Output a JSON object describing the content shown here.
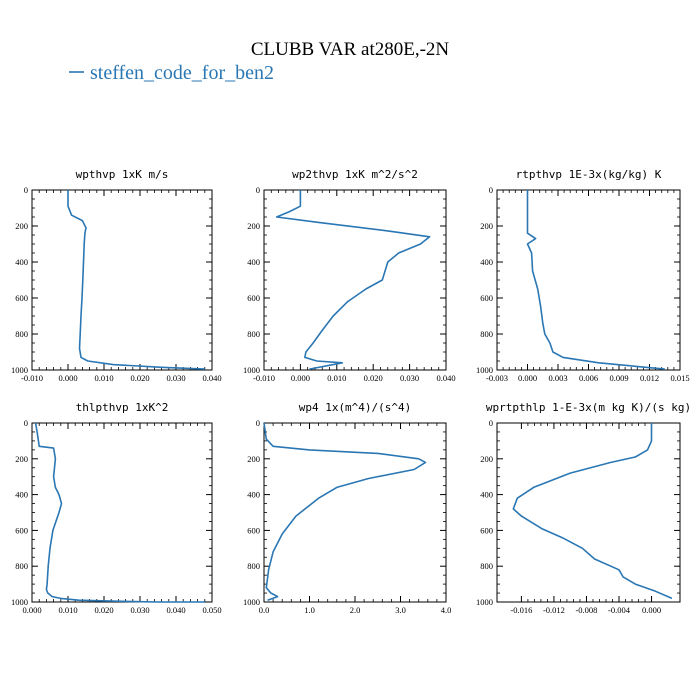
{
  "figure": {
    "title": "CLUBB VAR at280E,-2N",
    "legend": [
      {
        "name": "steffen_code_for_ben2",
        "color": "#2a77b4"
      }
    ]
  },
  "chart_data": [
    {
      "type": "line",
      "title": "wpthvp  1xK m/s",
      "xlim": [
        -0.01,
        0.04
      ],
      "ylim": [
        1000,
        0
      ],
      "xticks": [
        -0.01,
        0.0,
        0.01,
        0.02,
        0.03,
        0.04
      ],
      "xtick_labels": [
        "-0.010",
        "0.000",
        "0.010",
        "0.020",
        "0.030",
        "0.040"
      ],
      "yticks": [
        0,
        200,
        400,
        600,
        800,
        1000
      ],
      "ytick_labels": [
        "0",
        "200",
        "400",
        "600",
        "800",
        "1000"
      ],
      "series": [
        {
          "name": "steffen_code_for_ben2",
          "x": [
            0.0,
            0.0,
            0.0,
            0.001,
            0.004,
            0.005,
            0.0047,
            0.0045,
            0.0043,
            0.0041,
            0.0039,
            0.0036,
            0.0034,
            0.0032,
            0.0036,
            0.0055,
            0.0125,
            0.026,
            0.038
          ],
          "y": [
            0,
            40,
            90,
            140,
            170,
            210,
            240,
            300,
            400,
            500,
            600,
            700,
            800,
            880,
            930,
            950,
            970,
            985,
            995
          ]
        }
      ]
    },
    {
      "type": "line",
      "title": "wp2thvp  1xK m^2/s^2",
      "xlim": [
        -0.01,
        0.04
      ],
      "ylim": [
        1000,
        0
      ],
      "xticks": [
        -0.01,
        0.0,
        0.01,
        0.02,
        0.03,
        0.04
      ],
      "xtick_labels": [
        "-0.010",
        "0.000",
        "0.010",
        "0.020",
        "0.030",
        "0.040"
      ],
      "yticks": [
        0,
        200,
        400,
        600,
        800,
        1000
      ],
      "ytick_labels": [
        "0",
        "200",
        "400",
        "600",
        "800",
        "1000"
      ],
      "series": [
        {
          "name": "steffen_code_for_ben2",
          "x": [
            0.0,
            0.0,
            -0.003,
            -0.0065,
            0.005,
            0.025,
            0.0355,
            0.033,
            0.027,
            0.024,
            0.0225,
            0.018,
            0.013,
            0.009,
            0.006,
            0.0035,
            0.0015,
            0.0012,
            0.0045,
            0.0115,
            0.0025
          ],
          "y": [
            0,
            90,
            120,
            150,
            180,
            230,
            260,
            300,
            350,
            400,
            500,
            550,
            620,
            700,
            780,
            850,
            900,
            930,
            950,
            960,
            995
          ]
        }
      ]
    },
    {
      "type": "line",
      "title": "rtpthvp  1E-3x(kg/kg) K",
      "xlim": [
        -0.003,
        0.015
      ],
      "ylim": [
        1000,
        0
      ],
      "xticks": [
        -0.003,
        0.0,
        0.003,
        0.006,
        0.009,
        0.012,
        0.015
      ],
      "xtick_labels": [
        "-0.003",
        "0.000",
        "0.003",
        "0.006",
        "0.009",
        "0.012",
        "0.015"
      ],
      "yticks": [
        0,
        200,
        400,
        600,
        800,
        1000
      ],
      "ytick_labels": [
        "0",
        "200",
        "400",
        "600",
        "800",
        "1000"
      ],
      "series": [
        {
          "name": "steffen_code_for_ben2",
          "x": [
            0.0,
            0.0,
            0.0,
            0.0,
            0.0008,
            0.0,
            0.0004,
            0.0005,
            0.001,
            0.0013,
            0.0015,
            0.0017,
            0.0022,
            0.0025,
            0.0035,
            0.007,
            0.0135
          ],
          "y": [
            0,
            100,
            200,
            240,
            270,
            300,
            350,
            450,
            550,
            650,
            740,
            800,
            850,
            900,
            930,
            960,
            995
          ]
        }
      ]
    },
    {
      "type": "line",
      "title": "thlpthvp  1xK^2",
      "xlim": [
        0.0,
        0.05
      ],
      "ylim": [
        1000,
        0
      ],
      "xticks": [
        0.0,
        0.01,
        0.02,
        0.03,
        0.04,
        0.05
      ],
      "xtick_labels": [
        "0.000",
        "0.010",
        "0.020",
        "0.030",
        "0.040",
        "0.050"
      ],
      "yticks": [
        0,
        200,
        400,
        600,
        800,
        1000
      ],
      "ytick_labels": [
        "0",
        "200",
        "400",
        "600",
        "800",
        "1000"
      ],
      "series": [
        {
          "name": "steffen_code_for_ben2",
          "x": [
            0.001,
            0.0015,
            0.002,
            0.006,
            0.0065,
            0.006,
            0.0065,
            0.0075,
            0.0082,
            0.0075,
            0.0058,
            0.005,
            0.0045,
            0.0042,
            0.004,
            0.0044,
            0.0056,
            0.008,
            0.013,
            0.022,
            0.035,
            0.048
          ],
          "y": [
            0,
            60,
            130,
            140,
            200,
            300,
            360,
            400,
            450,
            500,
            600,
            700,
            800,
            900,
            930,
            950,
            970,
            980,
            990,
            995,
            1000,
            1000
          ]
        }
      ]
    },
    {
      "type": "line",
      "title": "wp4  1x(m^4)/(s^4)",
      "xlim": [
        0.0,
        4.0
      ],
      "ylim": [
        1000,
        0
      ],
      "xticks": [
        0.0,
        1.0,
        2.0,
        3.0,
        4.0
      ],
      "xtick_labels": [
        "0.0",
        "1.0",
        "2.0",
        "3.0",
        "4.0"
      ],
      "yticks": [
        0,
        200,
        400,
        600,
        800,
        1000
      ],
      "ytick_labels": [
        "0",
        "200",
        "400",
        "600",
        "800",
        "1000"
      ],
      "series": [
        {
          "name": "steffen_code_for_ben2",
          "x": [
            0.0,
            0.05,
            0.2,
            1.0,
            2.5,
            3.4,
            3.55,
            3.3,
            2.3,
            1.6,
            1.2,
            0.7,
            0.4,
            0.2,
            0.1,
            0.05,
            0.15,
            0.3,
            0.08
          ],
          "y": [
            0,
            90,
            130,
            150,
            170,
            200,
            220,
            260,
            310,
            360,
            420,
            520,
            620,
            720,
            820,
            920,
            950,
            970,
            990
          ]
        }
      ]
    },
    {
      "type": "line",
      "title": "wprtpthlp  1-E-3x(m kg K)/(s kg)",
      "xlim": [
        -0.019,
        0.0035
      ],
      "ylim": [
        1000,
        0
      ],
      "xticks": [
        -0.016,
        -0.012,
        -0.008,
        -0.004,
        0.0
      ],
      "xtick_labels": [
        "-0.016",
        "-0.012",
        "-0.008",
        "-0.004",
        "0.000"
      ],
      "yticks": [
        0,
        200,
        400,
        600,
        800,
        1000
      ],
      "ytick_labels": [
        "0",
        "200",
        "400",
        "600",
        "800",
        "1000"
      ],
      "series": [
        {
          "name": "steffen_code_for_ben2",
          "x": [
            0.0,
            0.0,
            -0.0005,
            -0.002,
            -0.005,
            -0.01,
            -0.0145,
            -0.0165,
            -0.017,
            -0.016,
            -0.0135,
            -0.011,
            -0.0085,
            -0.007,
            -0.004,
            -0.0035,
            -0.002,
            0.0005,
            0.0025
          ],
          "y": [
            0,
            100,
            150,
            190,
            220,
            280,
            360,
            420,
            480,
            520,
            590,
            640,
            700,
            760,
            820,
            860,
            900,
            940,
            980
          ]
        }
      ]
    }
  ]
}
